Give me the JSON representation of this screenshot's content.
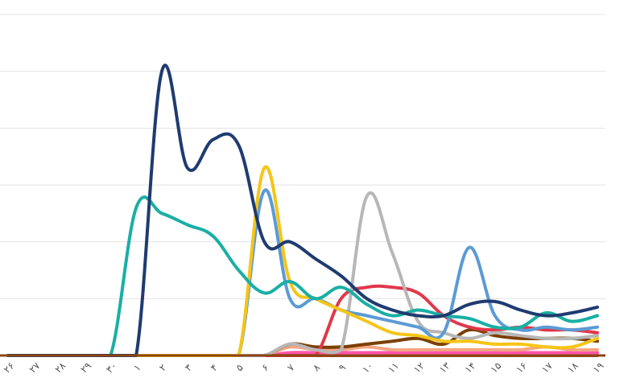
{
  "chart_data": {
    "type": "line",
    "title": "",
    "xlabel": "",
    "ylabel": "",
    "grid": "horizontal",
    "legend": "none",
    "axis_line_color": "#8B4513",
    "categories": [
      "۲۶",
      "۲۷",
      "۲۸",
      "۲۹",
      "۳۰",
      "۱",
      "۲",
      "۳",
      "۴",
      "۵",
      "۶",
      "۷",
      "۸",
      "۹",
      "۱۰",
      "۱۱",
      "۱۲",
      "۱۳",
      "۱۴",
      "۱۵",
      "۱۶",
      "۱۷",
      "۱۸",
      "۱۹"
    ],
    "ylim": [
      0,
      6
    ],
    "gridlines": [
      0,
      1,
      2,
      3,
      4,
      5,
      6
    ],
    "series": [
      {
        "color": "#1F3B70",
        "values": [
          0,
          0,
          0,
          0,
          0,
          0,
          5.0,
          3.3,
          3.8,
          3.7,
          2.0,
          2.0,
          1.7,
          1.4,
          1.0,
          0.8,
          0.7,
          0.7,
          0.9,
          0.95,
          0.8,
          0.7,
          0.75,
          0.85
        ]
      },
      {
        "color": "#1AAFA5",
        "values": [
          0,
          0,
          0,
          0,
          0,
          2.6,
          2.5,
          2.3,
          2.1,
          1.5,
          1.1,
          1.3,
          1.0,
          1.2,
          0.9,
          0.7,
          0.8,
          0.7,
          0.65,
          0.5,
          0.5,
          0.75,
          0.6,
          0.7
        ]
      },
      {
        "color": "#F5C518",
        "values": [
          0,
          0,
          0,
          0,
          0,
          0,
          0,
          0,
          0,
          0,
          3.3,
          1.3,
          1.0,
          0.8,
          0.6,
          0.4,
          0.35,
          0.25,
          0.25,
          0.2,
          0.2,
          0.15,
          0.15,
          0.3
        ]
      },
      {
        "color": "#5B9BD5",
        "values": [
          0,
          0,
          0,
          0,
          0,
          0,
          0,
          0,
          0,
          0,
          2.9,
          1.0,
          1.0,
          0.8,
          0.7,
          0.6,
          0.5,
          0.4,
          1.9,
          0.7,
          0.45,
          0.5,
          0.45,
          0.5
        ]
      },
      {
        "color": "#B7B7B7",
        "values": [
          0,
          0,
          0,
          0,
          0,
          0,
          0,
          0,
          0,
          0,
          0,
          0.2,
          0.1,
          0.1,
          2.8,
          1.8,
          0.6,
          0.4,
          0.3,
          0.4,
          0.35,
          0.3,
          0.3,
          0.35
        ]
      },
      {
        "color": "#E0384B",
        "values": [
          0,
          0,
          0,
          0,
          0,
          0,
          0,
          0,
          0,
          0,
          0,
          0,
          0,
          1.0,
          1.2,
          1.2,
          1.1,
          0.7,
          0.5,
          0.45,
          0.5,
          0.45,
          0.45,
          0.4
        ]
      },
      {
        "color": "#7B3F00",
        "values": [
          0,
          0,
          0,
          0,
          0,
          0,
          0,
          0,
          0,
          0,
          0,
          0.2,
          0.15,
          0.15,
          0.2,
          0.25,
          0.3,
          0.2,
          0.45,
          0.35,
          0.3,
          0.3,
          0.3,
          0.25
        ]
      },
      {
        "color": "#F4A582",
        "values": [
          0,
          0,
          0,
          0,
          0,
          0,
          0,
          0,
          0,
          0,
          0,
          0.15,
          0.1,
          0.1,
          0.15,
          0.1,
          0.1,
          0.1,
          0.1,
          0.1,
          0.1,
          0.15,
          0.1,
          0.1
        ]
      },
      {
        "color": "#FF55AA",
        "values": [
          0,
          0,
          0,
          0,
          0,
          0,
          0,
          0,
          0,
          0,
          0,
          0.05,
          0.05,
          0.05,
          0.05,
          0.05,
          0.05,
          0.05,
          0.05,
          0.05,
          0.05,
          0.05,
          0.05,
          0.05
        ]
      },
      {
        "color": "#6BBF3A",
        "values": [
          0,
          0,
          0,
          0,
          0,
          0,
          0,
          0,
          0,
          0,
          0,
          0.03,
          0.05,
          0.03,
          0.03,
          0.03,
          0.03,
          0.03,
          0.03,
          0.03,
          0.03,
          0.03,
          0.03,
          0.03
        ]
      },
      {
        "color": "#8B4513",
        "values": [
          0,
          0,
          0,
          0,
          0,
          0,
          0,
          0,
          0,
          0,
          0,
          0,
          0,
          0,
          0,
          0,
          0,
          0,
          0,
          0,
          0,
          0,
          0,
          0
        ]
      }
    ]
  }
}
